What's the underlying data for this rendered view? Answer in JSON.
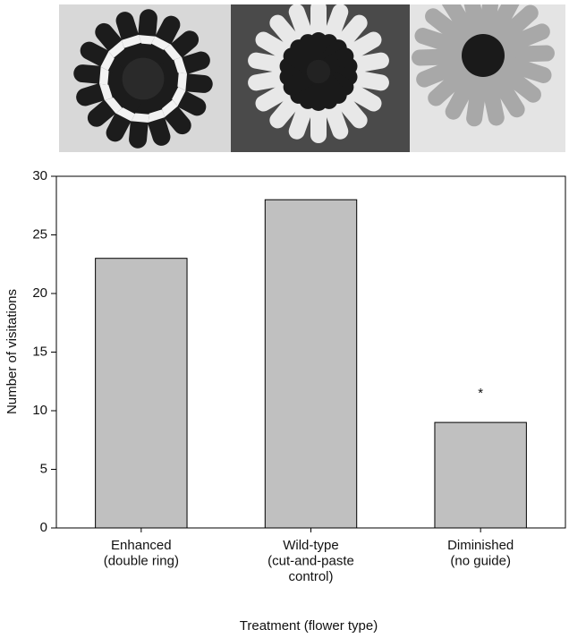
{
  "chart_data": {
    "type": "bar",
    "categories": [
      "Enhanced\n(double ring)",
      "Wild-type\n(cut-and-paste\ncontrol)",
      "Diminished\n(no guide)"
    ],
    "values": [
      23,
      28,
      9
    ],
    "color": "#c0c0c0",
    "ylim": [
      0,
      30
    ],
    "yticks": [
      0,
      5,
      10,
      15,
      20,
      25,
      30
    ],
    "y_label": "Number of visitations",
    "x_label": "Treatment (flower type)",
    "annotations": [
      "*"
    ],
    "grid": false
  }
}
